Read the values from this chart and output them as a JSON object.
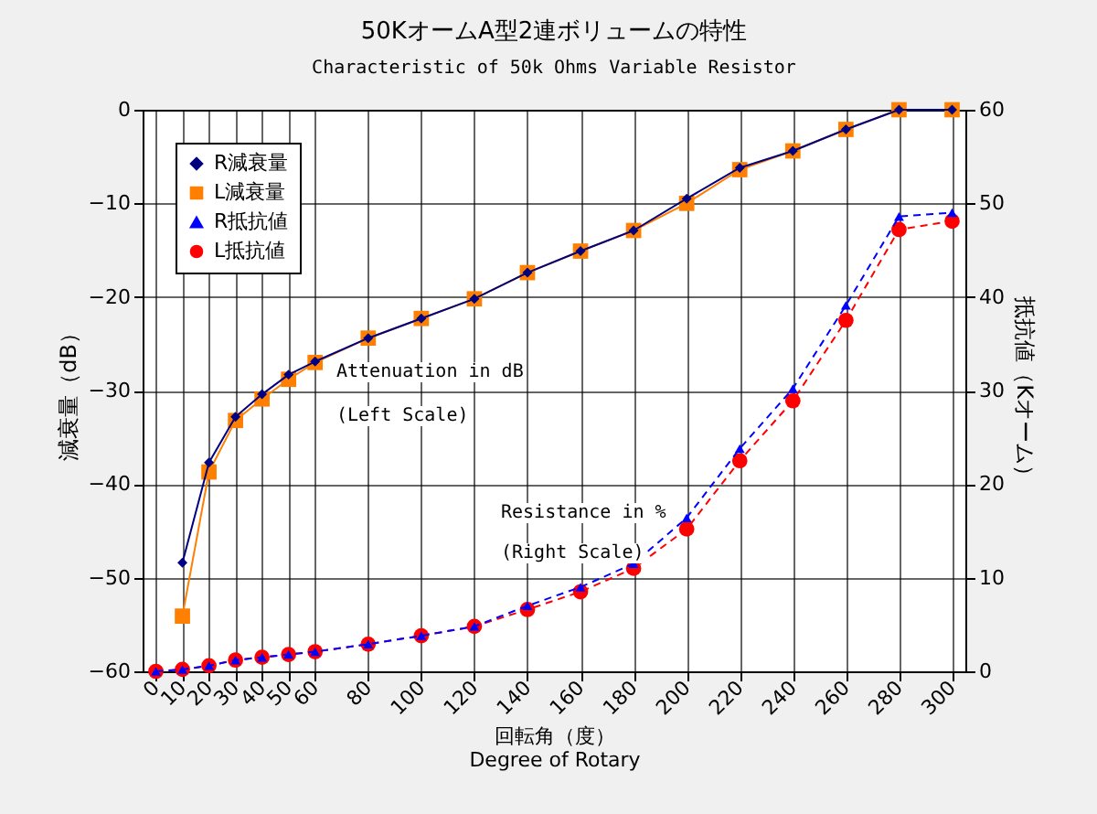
{
  "chart_data": {
    "type": "line",
    "title": "50KオームA型2連ボリュームの特性",
    "subtitle": "Characteristic of 50k Ohms Variable Resistor",
    "xlabel": "回転角（度）\nDegree of Rotary",
    "ylabel": "減衰量（dB）",
    "y2label": "抵抗値（Kオーム）",
    "annotations": [
      "Attenuation in dB",
      "(Left Scale)",
      "Resistance in %",
      "(Right Scale)"
    ],
    "x": [
      0,
      10,
      20,
      30,
      40,
      50,
      60,
      80,
      100,
      120,
      140,
      160,
      180,
      200,
      220,
      240,
      260,
      280,
      300
    ],
    "series": [
      {
        "name": "R減衰量",
        "color": "#000080",
        "marker": "diamond",
        "line_style": "solid",
        "values": [
          null,
          -48.4,
          -37.7,
          -32.8,
          -30.4,
          -28.3,
          -26.9,
          -24.4,
          -22.3,
          -20.2,
          -17.4,
          -15.1,
          -12.9,
          -9.5,
          -6.2,
          -4.4,
          -2.1,
          0,
          0
        ]
      },
      {
        "name": "L減衰量",
        "color": "#ff8000",
        "marker": "square",
        "line_style": "solid",
        "values": [
          null,
          -54.1,
          -38.7,
          -33.2,
          -30.9,
          -28.8,
          -27.0,
          -24.4,
          -22.3,
          -20.2,
          -17.4,
          -15.1,
          -12.9,
          -10.0,
          -6.4,
          -4.4,
          -2.1,
          0,
          0
        ]
      },
      {
        "name": "R抵抗値",
        "color": "#0000ff",
        "marker": "triangle",
        "line_style": "dashed",
        "axis": "y2",
        "values": [
          0,
          0.2,
          0.6,
          1.2,
          1.5,
          1.8,
          2.1,
          2.9,
          3.8,
          4.8,
          7.0,
          9.0,
          11.5,
          16.4,
          23.8,
          30.2,
          39.1,
          48.6,
          49.0
        ]
      },
      {
        "name": "L抵抗値",
        "color": "#ff0000",
        "marker": "circle",
        "line_style": "dashed",
        "axis": "y2",
        "values": [
          0,
          0.2,
          0.6,
          1.2,
          1.5,
          1.8,
          2.1,
          2.9,
          3.8,
          4.8,
          6.6,
          8.5,
          11.0,
          15.2,
          22.5,
          28.9,
          37.5,
          47.2,
          48.1
        ]
      }
    ],
    "xlim": [
      -5,
      305
    ],
    "xticks": [
      0,
      10,
      20,
      30,
      40,
      50,
      60,
      80,
      100,
      120,
      140,
      160,
      180,
      200,
      220,
      240,
      260,
      280,
      300
    ],
    "ylim": [
      -60,
      0
    ],
    "yticks": [
      -60,
      -50,
      -40,
      -30,
      -20,
      -10,
      0
    ],
    "y2lim": [
      0,
      60
    ],
    "y2ticks": [
      0,
      10,
      20,
      30,
      40,
      50,
      60
    ],
    "grid": true,
    "legend": "top left"
  }
}
